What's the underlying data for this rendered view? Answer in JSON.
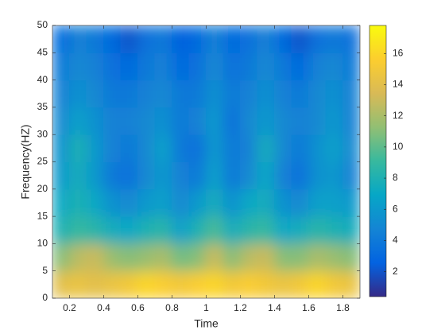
{
  "chart_data": {
    "type": "heatmap",
    "x_label": "Time",
    "y_label": "Frequency(HZ)",
    "x": [
      0.15,
      0.25,
      0.35,
      0.45,
      0.55,
      0.65,
      0.75,
      0.85,
      0.95,
      1.05,
      1.15,
      1.25,
      1.35,
      1.45,
      1.55,
      1.65,
      1.75,
      1.85
    ],
    "y": [
      2.5,
      7.5,
      12.5,
      17.5,
      22.5,
      27.5,
      32.5,
      37.5,
      42.5,
      47.5
    ],
    "z": [
      [
        14,
        14.5,
        14,
        14.5,
        15,
        16,
        15.5,
        15,
        15.5,
        16,
        15,
        15.5,
        15,
        14.5,
        15,
        16,
        15,
        14.5
      ],
      [
        11,
        12.5,
        13,
        11.5,
        11,
        11.5,
        12,
        10.5,
        11,
        13,
        11,
        12.5,
        13,
        11,
        11,
        12,
        11.5,
        11
      ],
      [
        8,
        9,
        8.5,
        7.5,
        7,
        8,
        8.5,
        6.5,
        8,
        9.5,
        7.5,
        8.5,
        9,
        7,
        7.5,
        8.5,
        8,
        7.5
      ],
      [
        7,
        8,
        7,
        5.5,
        5,
        6,
        6.5,
        5,
        6,
        7.5,
        5.5,
        7,
        7.5,
        5.5,
        5,
        6.5,
        6.5,
        6
      ],
      [
        6,
        7.5,
        6,
        4,
        3.5,
        5,
        6,
        4.5,
        4,
        6.5,
        4,
        5,
        7,
        4.5,
        3.5,
        5.5,
        6,
        4.5
      ],
      [
        5.5,
        8,
        6,
        4.5,
        4,
        5,
        6.5,
        4,
        3.5,
        6,
        4,
        4.5,
        7.5,
        5,
        4,
        5.5,
        6.5,
        5
      ],
      [
        5,
        6.5,
        5.5,
        4.5,
        4.5,
        5,
        5.5,
        4,
        4.5,
        6,
        3.5,
        5,
        6,
        5,
        4.5,
        5,
        6,
        4.5
      ],
      [
        4.5,
        5.5,
        5,
        4,
        4,
        4.5,
        5,
        4,
        4,
        5.5,
        4,
        4.5,
        5.5,
        4.5,
        4,
        5,
        5.5,
        4.5
      ],
      [
        4,
        5,
        4.5,
        3.5,
        3,
        4,
        4.5,
        3,
        3.5,
        5,
        3.5,
        4,
        5,
        4,
        3,
        4.5,
        5,
        4
      ],
      [
        3,
        4.5,
        4,
        3,
        2,
        3.5,
        4,
        2.5,
        3,
        4.5,
        3,
        3.5,
        4.5,
        3,
        2,
        3.5,
        4,
        3.5
      ]
    ],
    "colormap": "parula",
    "xlim": [
      0.1,
      1.9
    ],
    "xticks": [
      0.2,
      0.4,
      0.6,
      0.8,
      1,
      1.2,
      1.4,
      1.6,
      1.8
    ],
    "ylim": [
      0,
      50
    ],
    "yticks": [
      0,
      5,
      10,
      15,
      20,
      25,
      30,
      35,
      40,
      45,
      50
    ],
    "clim": [
      0.4,
      17.8
    ],
    "cticks": [
      2,
      4,
      6,
      8,
      10,
      12,
      14,
      16
    ]
  }
}
